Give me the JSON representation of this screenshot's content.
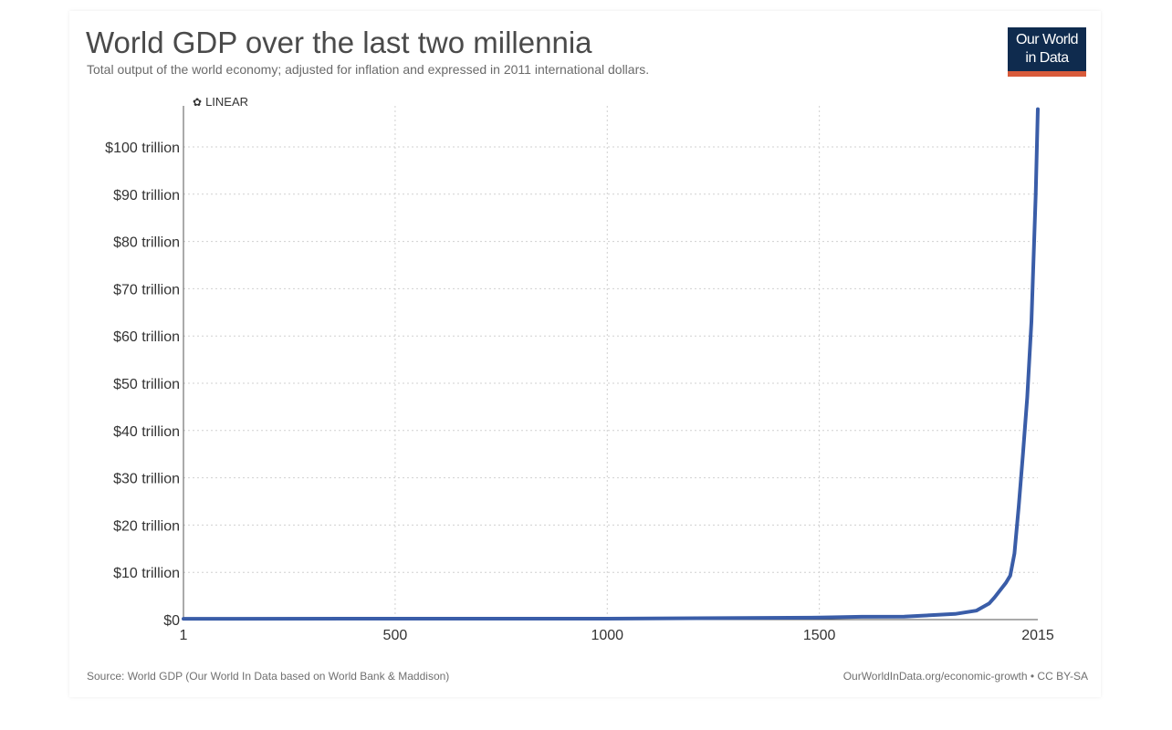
{
  "header": {
    "title": "World GDP over the last two millennia",
    "subtitle": "Total output of the world economy; adjusted for inflation and expressed in 2011 international dollars."
  },
  "logo": {
    "line1": "Our World",
    "line2": "in Data"
  },
  "scale_toggle": {
    "label": "LINEAR",
    "icon": "gear-icon"
  },
  "footer": {
    "source": "Source: World GDP (Our World In Data based on World Bank & Maddison)",
    "credit": "OurWorldInData.org/economic-growth • CC BY-SA"
  },
  "colors": {
    "line": "#3a5da8",
    "logo_bg": "#0f2b4e",
    "logo_accent": "#d85a3a",
    "grid": "#d0d0d0"
  },
  "chart_data": {
    "type": "line",
    "title": "World GDP over the last two millennia",
    "subtitle": "Total output of the world economy; adjusted for inflation and expressed in 2011 international dollars.",
    "xlabel": "",
    "ylabel": "",
    "xlim": [
      1,
      2015
    ],
    "ylim": [
      0,
      110
    ],
    "y_unit": "trillion international-$ (2011)",
    "x_ticks": [
      1,
      500,
      1000,
      1500,
      2015
    ],
    "x_tick_labels": [
      "1",
      "500",
      "1000",
      "1500",
      "2015"
    ],
    "y_ticks": [
      0,
      10,
      20,
      30,
      40,
      50,
      60,
      70,
      80,
      90,
      100
    ],
    "y_tick_labels": [
      "$0",
      "$10 trillion",
      "$20 trillion",
      "$30 trillion",
      "$40 trillion",
      "$50 trillion",
      "$60 trillion",
      "$70 trillion",
      "$80 trillion",
      "$90 trillion",
      "$100 trillion"
    ],
    "grid": true,
    "scale": "linear",
    "series": [
      {
        "x": [
          1,
          1000,
          1500,
          1600,
          1700,
          1820,
          1870,
          1900,
          1913,
          1940,
          1950,
          1960,
          1970,
          1980,
          1990,
          2000,
          2010,
          2015
        ],
        "values": [
          0.18,
          0.2,
          0.43,
          0.6,
          0.64,
          1.2,
          1.9,
          3.4,
          4.7,
          7.8,
          9.3,
          14.0,
          24.0,
          35.0,
          47.0,
          63.0,
          90.0,
          108.0
        ]
      }
    ]
  }
}
